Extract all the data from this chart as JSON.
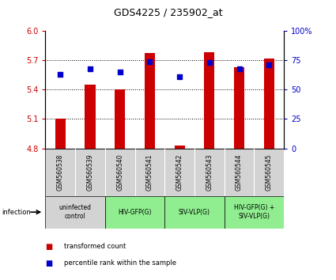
{
  "title": "GDS4225 / 235902_at",
  "samples": [
    "GSM560538",
    "GSM560539",
    "GSM560540",
    "GSM560541",
    "GSM560542",
    "GSM560543",
    "GSM560544",
    "GSM560545"
  ],
  "bar_values": [
    5.1,
    5.45,
    5.4,
    5.77,
    4.83,
    5.78,
    5.63,
    5.72
  ],
  "dot_values": [
    63,
    68,
    65,
    74,
    61,
    73,
    68,
    71
  ],
  "ymin": 4.8,
  "ymax": 6.0,
  "y2min": 0,
  "y2max": 100,
  "yticks": [
    4.8,
    5.1,
    5.4,
    5.7,
    6.0
  ],
  "y2ticks": [
    0,
    25,
    50,
    75,
    100
  ],
  "bar_color": "#CC0000",
  "dot_color": "#0000CC",
  "groups": [
    {
      "label": "uninfected\ncontrol",
      "start": 0,
      "end": 2,
      "color": "#d3d3d3"
    },
    {
      "label": "HIV-GFP(G)",
      "start": 2,
      "end": 4,
      "color": "#90EE90"
    },
    {
      "label": "SIV-VLP(G)",
      "start": 4,
      "end": 6,
      "color": "#90EE90"
    },
    {
      "label": "HIV-GFP(G) +\nSIV-VLP(G)",
      "start": 6,
      "end": 8,
      "color": "#90EE90"
    }
  ],
  "infection_label": "infection",
  "legend_bar": "transformed count",
  "legend_dot": "percentile rank within the sample",
  "bar_color_left": "#CC0000",
  "dot_color_right": "#0000CC",
  "sample_bg": "#d3d3d3",
  "bar_width": 0.35
}
